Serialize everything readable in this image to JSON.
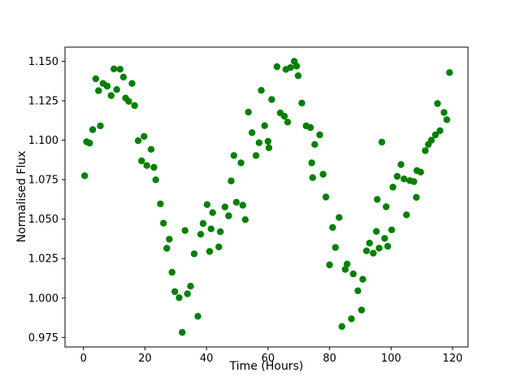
{
  "chart_data": {
    "type": "scatter",
    "title": "",
    "xlabel": "Time (Hours)",
    "ylabel": "Normalised Flux",
    "marker_color": "#008000",
    "marker_radius": 4.2,
    "grid": false,
    "legend": "none",
    "xlim": [
      -6,
      125
    ],
    "ylim": [
      0.969,
      1.159
    ],
    "x_ticks": {
      "values": [
        0,
        20,
        40,
        60,
        80,
        100,
        120
      ],
      "labels": [
        "0",
        "20",
        "40",
        "60",
        "80",
        "100",
        "120"
      ]
    },
    "y_ticks": {
      "values": [
        0.975,
        1.0,
        1.025,
        1.05,
        1.075,
        1.1,
        1.125,
        1.15
      ],
      "labels": [
        "0.975",
        "1.000",
        "1.025",
        "1.050",
        "1.075",
        "1.100",
        "1.125",
        "1.150"
      ]
    },
    "points": [
      [
        0.4,
        1.0775
      ],
      [
        1.0,
        1.099
      ],
      [
        2.0,
        1.0982
      ],
      [
        3.0,
        1.1067
      ],
      [
        4.0,
        1.1389
      ],
      [
        4.9,
        1.1314
      ],
      [
        5.5,
        1.1091
      ],
      [
        6.4,
        1.136
      ],
      [
        7.7,
        1.1343
      ],
      [
        9.0,
        1.1283
      ],
      [
        9.9,
        1.1452
      ],
      [
        10.8,
        1.1321
      ],
      [
        11.9,
        1.145
      ],
      [
        13.0,
        1.14
      ],
      [
        13.7,
        1.1267
      ],
      [
        14.7,
        1.1246
      ],
      [
        15.8,
        1.136
      ],
      [
        16.6,
        1.122
      ],
      [
        17.8,
        1.0997
      ],
      [
        18.9,
        1.0869
      ],
      [
        19.7,
        1.1024
      ],
      [
        20.6,
        1.084
      ],
      [
        22.0,
        1.0942
      ],
      [
        22.9,
        1.0828
      ],
      [
        23.5,
        1.0749
      ],
      [
        25.0,
        1.0597
      ],
      [
        26.0,
        1.0474
      ],
      [
        27.1,
        1.0315
      ],
      [
        27.9,
        1.0373
      ],
      [
        28.8,
        1.0163
      ],
      [
        29.7,
        1.004
      ],
      [
        31.1,
        1.0002
      ],
      [
        32.1,
        0.9782
      ],
      [
        33.0,
        1.0428
      ],
      [
        33.8,
        1.0027
      ],
      [
        34.8,
        1.0075
      ],
      [
        36.0,
        1.028
      ],
      [
        37.2,
        0.9884
      ],
      [
        38.1,
        1.0404
      ],
      [
        38.9,
        1.0472
      ],
      [
        40.2,
        1.0592
      ],
      [
        41.0,
        1.0295
      ],
      [
        41.5,
        1.0438
      ],
      [
        42.0,
        1.0541
      ],
      [
        44.0,
        1.0324
      ],
      [
        44.5,
        1.042
      ],
      [
        46.0,
        1.0577
      ],
      [
        47.2,
        1.0521
      ],
      [
        48.0,
        1.0742
      ],
      [
        48.9,
        1.0903
      ],
      [
        49.7,
        1.0607
      ],
      [
        51.2,
        1.0857
      ],
      [
        51.8,
        1.0588
      ],
      [
        52.6,
        1.0497
      ],
      [
        53.6,
        1.1178
      ],
      [
        54.8,
        1.1048
      ],
      [
        56.1,
        1.0903
      ],
      [
        57.1,
        1.0984
      ],
      [
        57.8,
        1.1316
      ],
      [
        58.9,
        1.1092
      ],
      [
        60.0,
        1.0993
      ],
      [
        60.3,
        1.0952
      ],
      [
        61.2,
        1.1258
      ],
      [
        62.9,
        1.1466
      ],
      [
        64.0,
        1.1173
      ],
      [
        65.3,
        1.1152
      ],
      [
        66.4,
        1.1115
      ],
      [
        65.8,
        1.1449
      ],
      [
        67.3,
        1.146
      ],
      [
        68.5,
        1.15
      ],
      [
        69.3,
        1.147
      ],
      [
        69.8,
        1.1409
      ],
      [
        71.0,
        1.1236
      ],
      [
        72.4,
        1.1091
      ],
      [
        73.8,
        1.108
      ],
      [
        74.2,
        1.0857
      ],
      [
        74.5,
        1.0763
      ],
      [
        75.2,
        1.0973
      ],
      [
        76.8,
        1.1034
      ],
      [
        77.9,
        1.0784
      ],
      [
        78.8,
        1.064
      ],
      [
        80.0,
        1.021
      ],
      [
        81.0,
        1.0447
      ],
      [
        81.9,
        1.032
      ],
      [
        83.1,
        1.051
      ],
      [
        84.0,
        0.982
      ],
      [
        85.1,
        1.0181
      ],
      [
        85.7,
        1.0215
      ],
      [
        87.1,
        0.9868
      ],
      [
        87.7,
        1.0153
      ],
      [
        89.2,
        1.0046
      ],
      [
        90.4,
        0.9924
      ],
      [
        90.8,
        1.0119
      ],
      [
        92.0,
        1.0299
      ],
      [
        93.0,
        1.0348
      ],
      [
        94.2,
        1.0284
      ],
      [
        95.2,
        1.0422
      ],
      [
        95.5,
        1.0625
      ],
      [
        96.1,
        1.0316
      ],
      [
        97.0,
        1.0988
      ],
      [
        97.9,
        1.0378
      ],
      [
        98.4,
        1.0578
      ],
      [
        98.9,
        1.0328
      ],
      [
        100.2,
        1.0432
      ],
      [
        100.6,
        1.0703
      ],
      [
        102.0,
        1.0771
      ],
      [
        103.2,
        1.0846
      ],
      [
        104.2,
        1.0755
      ],
      [
        105.0,
        1.0527
      ],
      [
        106.1,
        1.0744
      ],
      [
        107.4,
        1.0738
      ],
      [
        108.2,
        1.0638
      ],
      [
        108.4,
        1.0808
      ],
      [
        109.6,
        1.0798
      ],
      [
        111.1,
        1.0934
      ],
      [
        112.1,
        1.0973
      ],
      [
        113.1,
        1.1
      ],
      [
        114.4,
        1.1034
      ],
      [
        115.9,
        1.106
      ],
      [
        115.1,
        1.1232
      ],
      [
        117.2,
        1.1176
      ],
      [
        118.1,
        1.113
      ],
      [
        119.0,
        1.1429
      ]
    ]
  }
}
